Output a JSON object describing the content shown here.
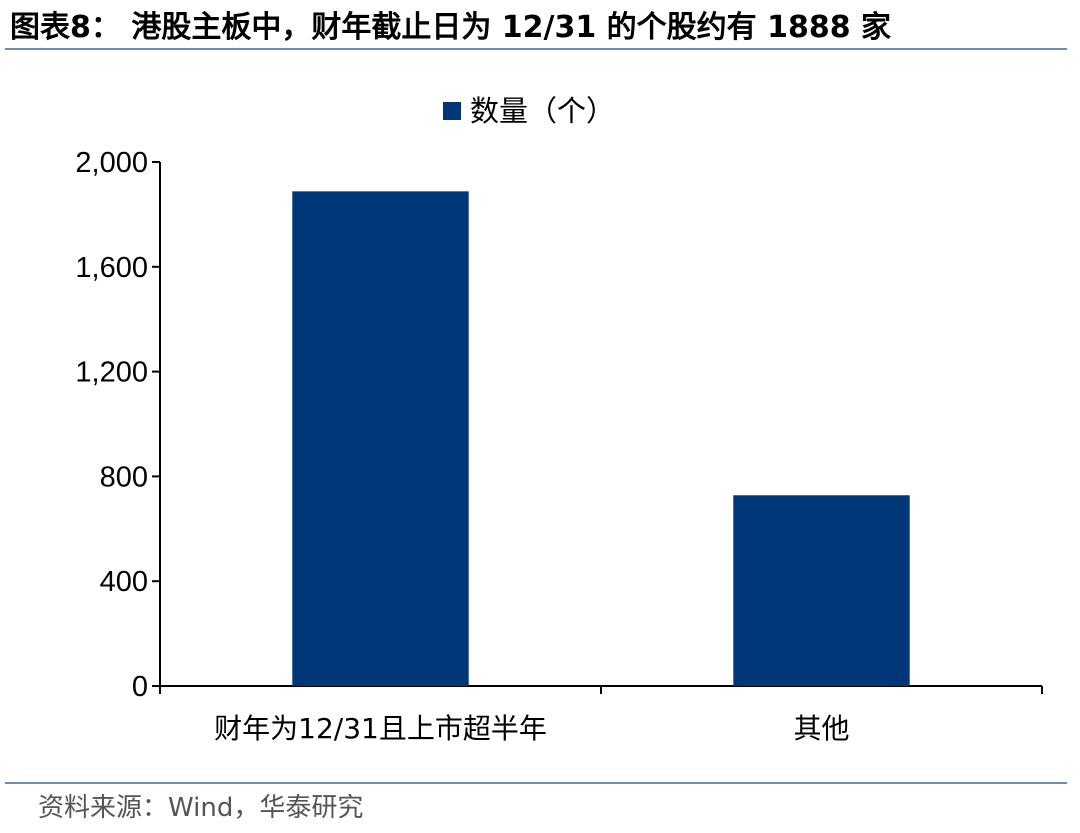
{
  "figure": {
    "title": "图表8：  港股主板中，财年截止日为 12/31 的个股约有 1888 家",
    "source": "资料来源：Wind，华泰研究"
  },
  "chart_data": {
    "type": "bar",
    "categories": [
      "财年为12/31且上市超半年",
      "其他"
    ],
    "series": [
      {
        "name": "数量（个）",
        "values": [
          1888,
          728
        ],
        "color": "#003778"
      }
    ],
    "yticks": [
      "0",
      "400",
      "800",
      "1,200",
      "1,600",
      "2,000"
    ],
    "ylim": [
      0,
      2000
    ],
    "grid": false,
    "legend": "top-center"
  }
}
